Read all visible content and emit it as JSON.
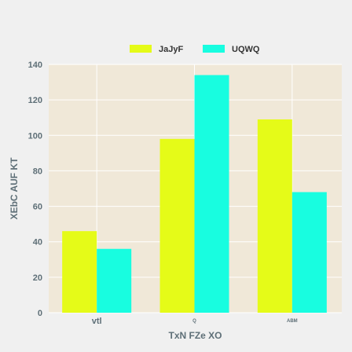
{
  "chart_data": {
    "type": "bar",
    "title": "",
    "xlabel": "TxN FZe XO",
    "ylabel": "XEbC AUF KT",
    "categories": [
      "vtl",
      "Q",
      "ABM"
    ],
    "category_label_sizes": [
      "large",
      "small",
      "small"
    ],
    "series": [
      {
        "name": "JaJyF",
        "color": "#e5fb18",
        "values": [
          46,
          98,
          109
        ]
      },
      {
        "name": "UQWQ",
        "color": "#18fde0",
        "values": [
          36,
          134,
          68
        ]
      }
    ],
    "ylim": [
      0,
      140
    ],
    "yticks": [
      0,
      20,
      40,
      60,
      80,
      100,
      120,
      140
    ],
    "grid": true,
    "legend": "top-center",
    "plot_background": "#f0e8d8",
    "grid_color": "#ffffff"
  }
}
